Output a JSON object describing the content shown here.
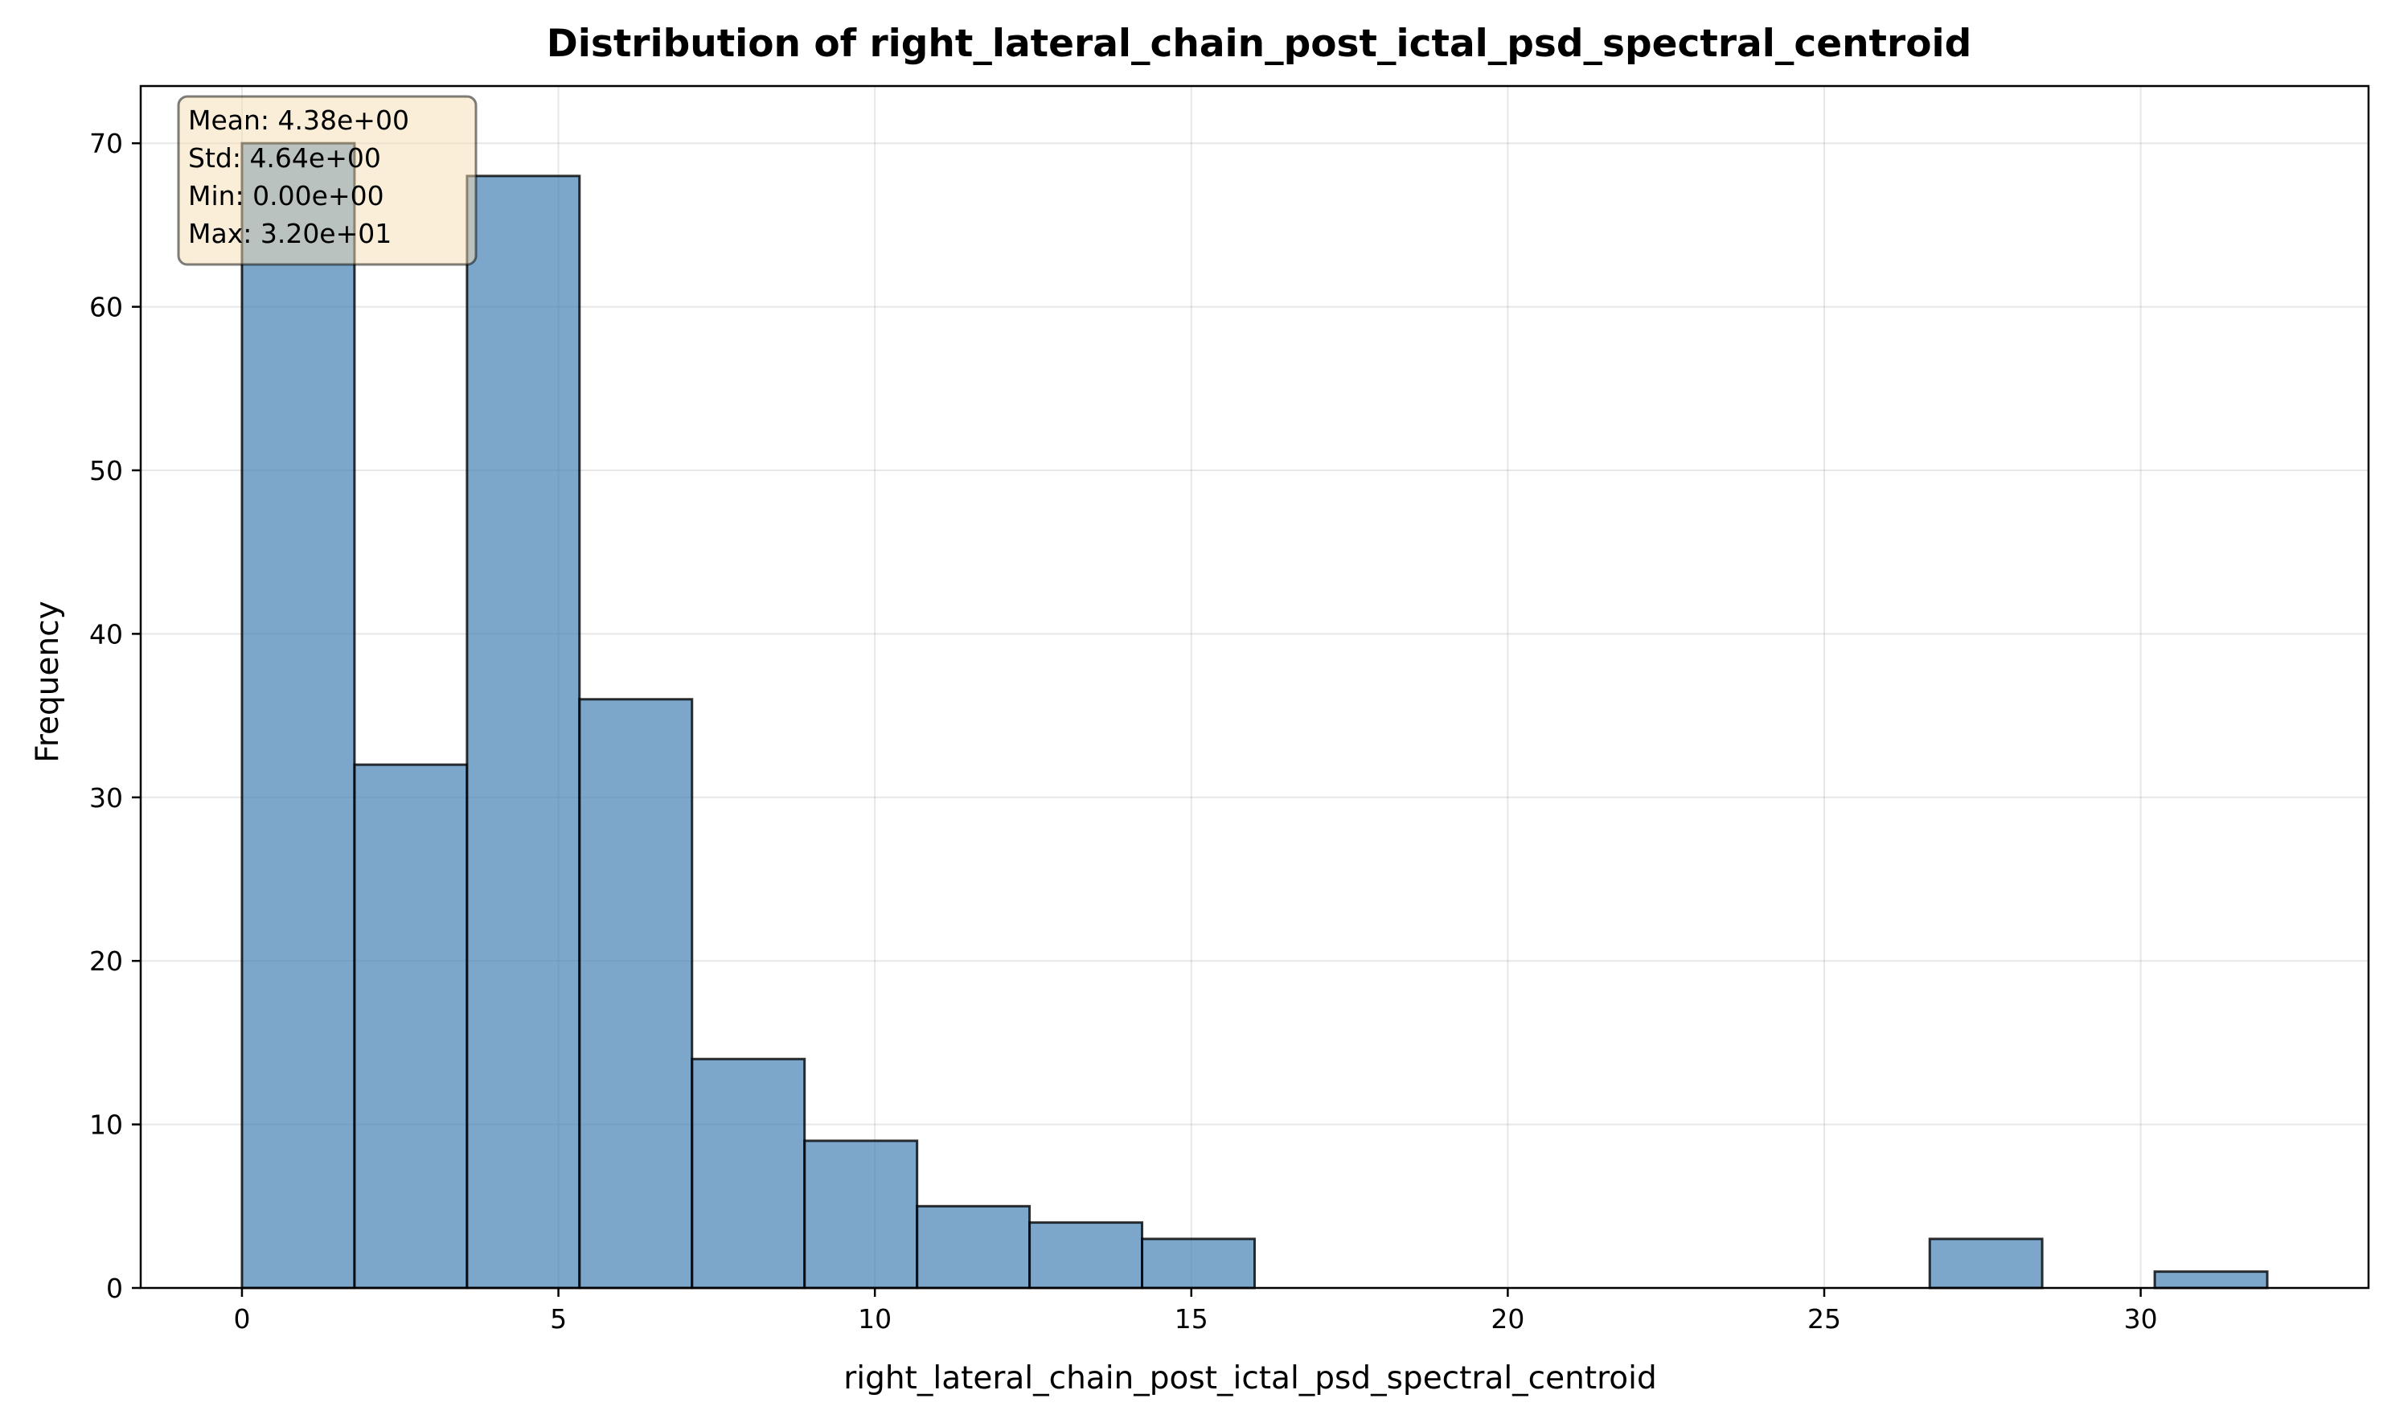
{
  "chart_data": {
    "type": "bar",
    "subtype": "histogram",
    "title": "Distribution of right_lateral_chain_post_ictal_psd_spectral_centroid",
    "xlabel": "right_lateral_chain_post_ictal_psd_spectral_centroid",
    "ylabel": "Frequency",
    "bin_edges": [
      0.0,
      1.778,
      3.556,
      5.333,
      7.111,
      8.889,
      10.667,
      12.444,
      14.222,
      16.0,
      17.778,
      19.556,
      21.333,
      23.111,
      24.889,
      26.667,
      28.444,
      30.222,
      32.0
    ],
    "values": [
      70,
      32,
      68,
      36,
      14,
      9,
      5,
      4,
      3,
      0,
      0,
      0,
      0,
      0,
      0,
      3,
      0,
      1
    ],
    "xlim": [
      -1.6,
      33.6
    ],
    "ylim": [
      0,
      73.5
    ],
    "x_ticks": [
      0,
      5,
      10,
      15,
      20,
      25,
      30
    ],
    "y_ticks": [
      0,
      10,
      20,
      30,
      40,
      50,
      60,
      70
    ],
    "grid": true,
    "bar_color": "#4682b4",
    "bar_opacity": 0.7,
    "edge_color": "#000000",
    "stats_box": {
      "lines": [
        "Mean: 4.38e+00",
        "Std: 4.64e+00",
        "Min: 0.00e+00",
        "Max: 3.20e+01"
      ],
      "background": "#f5deb3",
      "placement": "top-left"
    }
  }
}
